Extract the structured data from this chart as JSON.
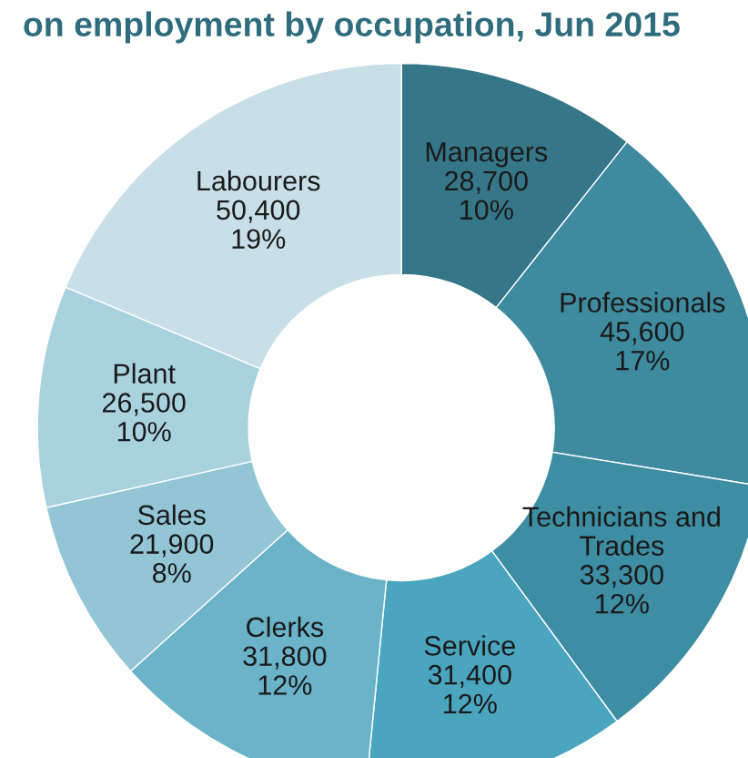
{
  "chart_data": {
    "type": "donut",
    "title": "on employment by occupation, Jun 2015",
    "categories": [
      "Managers",
      "Professionals",
      "Technicians and Trades",
      "Service",
      "Clerks",
      "Sales",
      "Plant",
      "Labourers"
    ],
    "values": [
      28700,
      45600,
      33300,
      31400,
      31800,
      21900,
      26500,
      50400
    ],
    "value_labels": [
      "28,700\n10%",
      "45,600\n17%",
      "33,300\n12%",
      "31,400\n12%",
      "31,800\n12%",
      "21,900\n8%",
      "26,500\n10%",
      "50,400\n19%"
    ],
    "colors": [
      "#357788",
      "#3e8a9e",
      "#3d8da3",
      "#4aa6bf",
      "#6ab3c8",
      "#92c5d5",
      "#a9d2df",
      "#c8dfe7"
    ],
    "legend": false
  }
}
